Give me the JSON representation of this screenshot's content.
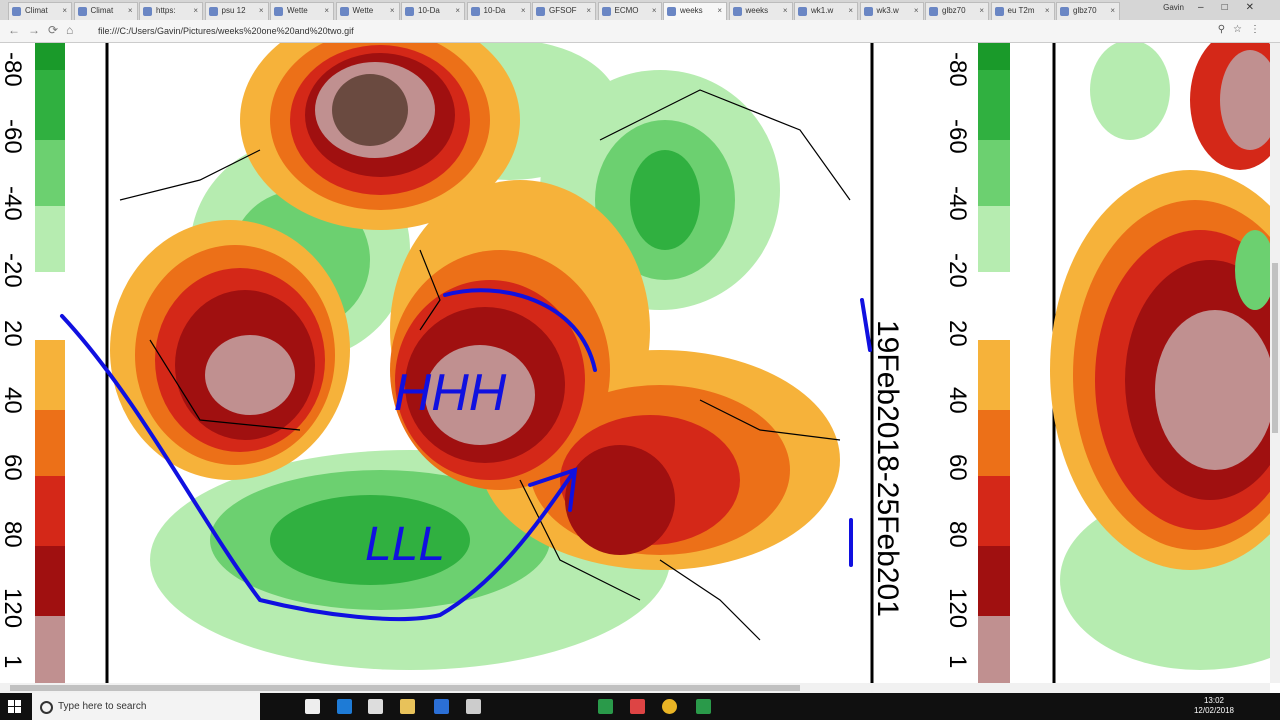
{
  "tabs": [
    "Climat",
    "Climat",
    "https:",
    "psu 12",
    "Wette",
    "Wette",
    "10-Da",
    "10-Da",
    "GFSOF",
    "ECMO",
    "weeks",
    "weeks",
    "wk1.w",
    "wk3.w",
    "glbz70",
    "eu T2m",
    "glbz70"
  ],
  "active_tab": 10,
  "window_user": "Gavin",
  "address": "file:///C:/Users/Gavin/Pictures/weeks%20one%20and%20two.gif",
  "scale_labels": [
    "-80",
    "-60",
    "-40",
    "-20",
    "20",
    "40",
    "60",
    "80",
    "120",
    "1"
  ],
  "date_range": "19Feb2018-25Feb201",
  "annotations": {
    "high": "HHH",
    "low": "LLL"
  },
  "taskbar": {
    "search": "Type here to search",
    "time": "13:02",
    "date": "12/02/2018"
  }
}
